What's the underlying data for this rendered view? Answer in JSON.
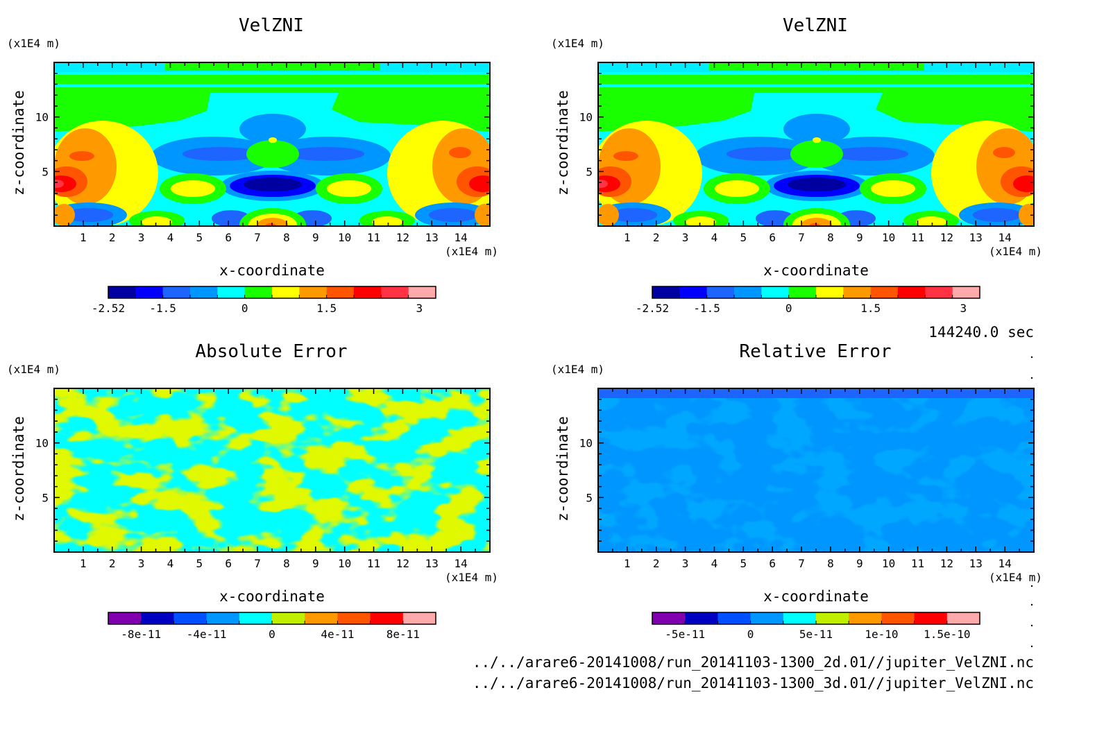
{
  "time_label": "144240.0 sec",
  "file_lines": [
    "../../arare6-20141008/run_20141103-1300_2d.01//jupiter_VelZNI.nc",
    "../../arare6-20141008/run_20141103-1300_3d.01//jupiter_VelZNI.nc"
  ],
  "chart_data": [
    {
      "type": "heatmap",
      "title": "VelZNI",
      "xlabel": "x-coordinate",
      "ylabel": "z-coordinate",
      "x_unit": "(x1E4 m)",
      "z_unit": "(x1E4 m)",
      "xlim": [
        0,
        15
      ],
      "zlim": [
        0,
        15
      ],
      "x_ticks": [
        "1",
        "2",
        "3",
        "4",
        "5",
        "6",
        "7",
        "8",
        "9",
        "10",
        "11",
        "12",
        "13",
        "14"
      ],
      "z_ticks": [
        "5",
        "10"
      ],
      "colorbar_colors": [
        "#0000a0",
        "#0000ff",
        "#1e64ff",
        "#0096ff",
        "#00ffff",
        "#1aff00",
        "#ffff00",
        "#ff9900",
        "#ff5500",
        "#ff0000",
        "#ff3344",
        "#ffaaaa"
      ],
      "colorbar_labels": [
        "-2.52",
        "-1.5",
        "0",
        "1.5",
        "3"
      ],
      "grid": false
    },
    {
      "type": "heatmap",
      "title": "VelZNI",
      "xlabel": "x-coordinate",
      "ylabel": "z-coordinate",
      "x_unit": "(x1E4 m)",
      "z_unit": "(x1E4 m)",
      "xlim": [
        0,
        15
      ],
      "zlim": [
        0,
        15
      ],
      "x_ticks": [
        "1",
        "2",
        "3",
        "4",
        "5",
        "6",
        "7",
        "8",
        "9",
        "10",
        "11",
        "12",
        "13",
        "14"
      ],
      "z_ticks": [
        "5",
        "10"
      ],
      "colorbar_colors": [
        "#0000a0",
        "#0000ff",
        "#1e64ff",
        "#0096ff",
        "#00ffff",
        "#1aff00",
        "#ffff00",
        "#ff9900",
        "#ff5500",
        "#ff0000",
        "#ff3344",
        "#ffaaaa"
      ],
      "colorbar_labels": [
        "-2.52",
        "-1.5",
        "0",
        "1.5",
        "3"
      ],
      "grid": false
    },
    {
      "type": "heatmap",
      "title": "Absolute Error",
      "xlabel": "x-coordinate",
      "ylabel": "z-coordinate",
      "x_unit": "(x1E4 m)",
      "z_unit": "(x1E4 m)",
      "xlim": [
        0,
        15
      ],
      "zlim": [
        0,
        15
      ],
      "x_ticks": [
        "1",
        "2",
        "3",
        "4",
        "5",
        "6",
        "7",
        "8",
        "9",
        "10",
        "11",
        "12",
        "13",
        "14"
      ],
      "z_ticks": [
        "5",
        "10"
      ],
      "colorbar_colors": [
        "#8000b0",
        "#0000c0",
        "#0050ff",
        "#0096ff",
        "#00ffff",
        "#c0f000",
        "#ff9900",
        "#ff5500",
        "#ff0000",
        "#ffaaaa"
      ],
      "colorbar_labels": [
        "-8e-11",
        "-4e-11",
        "0",
        "4e-11",
        "8e-11"
      ],
      "grid": false
    },
    {
      "type": "heatmap",
      "title": "Relative Error",
      "xlabel": "x-coordinate",
      "ylabel": "z-coordinate",
      "x_unit": "(x1E4 m)",
      "z_unit": "(x1E4 m)",
      "xlim": [
        0,
        15
      ],
      "zlim": [
        0,
        15
      ],
      "x_ticks": [
        "1",
        "2",
        "3",
        "4",
        "5",
        "6",
        "7",
        "8",
        "9",
        "10",
        "11",
        "12",
        "13",
        "14"
      ],
      "z_ticks": [
        "5",
        "10"
      ],
      "colorbar_colors": [
        "#8000b0",
        "#0000c0",
        "#0050ff",
        "#0096ff",
        "#00ffff",
        "#c0f000",
        "#ff9900",
        "#ff5500",
        "#ff0000",
        "#ffaaaa"
      ],
      "colorbar_labels": [
        "-5e-11",
        "0",
        "5e-11",
        "1e-10",
        "1.5e-10"
      ],
      "grid": false
    }
  ]
}
